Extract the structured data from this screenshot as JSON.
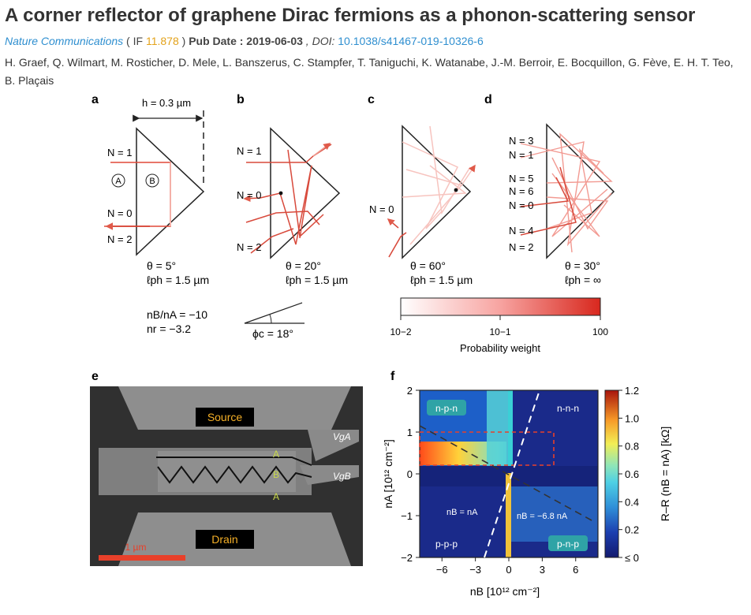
{
  "article": {
    "title": "A corner reflector of graphene Dirac fermions as a phonon-scattering sensor",
    "journal": "Nature Communications",
    "if_open": " ( IF ",
    "if_value": "11.878",
    "if_close": " ) ",
    "pub_date_label": "Pub Date : 2019-06-03",
    "doi_label": " , DOI: ",
    "doi": "10.1038/s41467-019-10326-6",
    "authors": "H. Graef, Q. Wilmart, M. Rosticher, D. Mele, L. Banszerus, C. Stampfer, T. Taniguchi, K. Watanabe, J.-M. Berroir, E. Bocquillon, G. Fève, E. H. T. Teo, B. Plaçais"
  },
  "figure": {
    "panel_a": {
      "label": "a",
      "h_label": "h = 0.3 µm",
      "n_labels": [
        "N = 1",
        "N = 0",
        "N = 2"
      ],
      "region_a": "A",
      "region_b": "B",
      "theta": "θ = 5°",
      "lph": "ℓph = 1.5 µm",
      "ratio": "nB/nA = −10",
      "nr": "nr = −3.2"
    },
    "panel_b": {
      "label": "b",
      "n_labels": [
        "N = 1",
        "N = 0",
        "N = 2"
      ],
      "theta": "θ = 20°",
      "lph": "ℓph = 1.5 µm",
      "phi": "ϕc = 18°"
    },
    "panel_c": {
      "label": "c",
      "n_labels": [
        "N = 0"
      ],
      "theta": "θ = 60°",
      "lph": "ℓph = 1.5 µm",
      "colorbar_ticks": [
        "10−2",
        "10−1",
        "100"
      ],
      "colorbar_title": "Probability weight"
    },
    "panel_d": {
      "label": "d",
      "n_labels": [
        "N = 3",
        "N = 1",
        "N = 5",
        "N = 6",
        "N = 0",
        "N = 4",
        "N = 2"
      ],
      "theta": "θ = 30°",
      "lph": "ℓph = ∞"
    },
    "panel_e": {
      "label": "e",
      "source": "Source",
      "drain": "Drain",
      "vga": "VgA",
      "vgb": "VgB",
      "regions": [
        "A",
        "B",
        "A"
      ],
      "scale": "1 µm"
    },
    "panel_f": {
      "label": "f",
      "quadrants": {
        "tl": "n-p-n",
        "tr": "n-n-n",
        "bl": "p-p-p",
        "br": "p-n-p"
      },
      "line_labels": [
        "nB = nA",
        "nB = −6.8 nA"
      ],
      "ylabel": "nA [10¹² cm⁻²]",
      "xlabel": "nB [10¹² cm⁻²]",
      "cbar_label": "R–R (nB = nA) [kΩ]",
      "cbar_ticks": [
        "1.2",
        "1.0",
        "0.8",
        "0.6",
        "0.4",
        "0.2",
        "≤ 0"
      ],
      "colors": {
        "low": "#13207a",
        "mid": "#2fb5d4",
        "high": "#ff2a10",
        "accent": "#e8402a"
      }
    }
  },
  "chart_data": {
    "type": "heatmap",
    "title": "",
    "xlabel": "nB [10¹² cm⁻²]",
    "ylabel": "nA [10¹² cm⁻²]",
    "xlim": [
      -8,
      8
    ],
    "ylim": [
      -2,
      2
    ],
    "xticks": [
      -6,
      -3,
      0,
      3,
      6
    ],
    "yticks": [
      -2,
      -1,
      0,
      1,
      2
    ],
    "colorbar": {
      "label": "R–R (nB = nA) [kΩ]",
      "range": [
        0,
        1.2
      ],
      "ticks": [
        0,
        0.2,
        0.4,
        0.6,
        0.8,
        1.0,
        1.2
      ]
    },
    "annotations": [
      {
        "text": "nB = nA",
        "line_slope": 1
      },
      {
        "text": "nB = −6.8 nA",
        "line_slope": -0.147
      }
    ]
  }
}
